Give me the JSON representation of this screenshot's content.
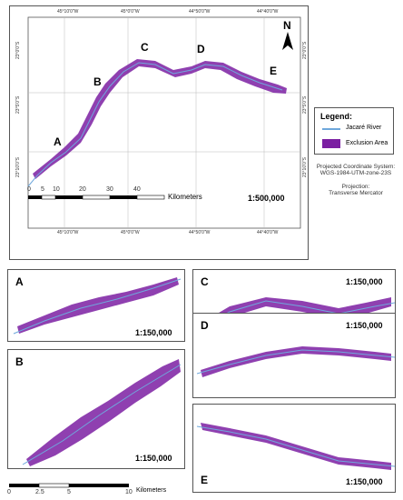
{
  "main_map": {
    "top_ticks": [
      "45°10'0\"W",
      "45°0'0\"W",
      "44°50'0\"W",
      "44°40'0\"W"
    ],
    "bottom_ticks": [
      "45°10'0\"W",
      "45°0'0\"W",
      "44°50'0\"W",
      "44°40'0\"W"
    ],
    "left_ticks": [
      "23°0'0\"S",
      "23°5'0\"S",
      "23°10'0\"S"
    ],
    "right_ticks": [
      "23°0'0\"S",
      "23°5'0\"S",
      "23°10'0\"S"
    ],
    "section_labels": [
      "A",
      "B",
      "C",
      "D",
      "E"
    ],
    "north_label": "N",
    "scale_ticks": [
      "0",
      "5",
      "10",
      "20",
      "30",
      "40"
    ],
    "scale_unit": "Kilometers",
    "scale_ratio": "1:500,000"
  },
  "legend": {
    "title": "Legend:",
    "items": [
      {
        "label": "Jacaré River",
        "color": "#6fa8dc"
      },
      {
        "label": "Exclusion Area",
        "color": "#7b1fa2"
      }
    ]
  },
  "projection": {
    "coord_system": "Projected Coordinate System:",
    "coord_value": "WGS-1984-UTM-zone-23S",
    "proj_label": "Projection:",
    "proj_value": "Transverse Mercator"
  },
  "insets": [
    {
      "label": "A",
      "scale": "1:150,000"
    },
    {
      "label": "B",
      "scale": "1:150,000"
    },
    {
      "label": "C",
      "scale": "1:150,000"
    },
    {
      "label": "D",
      "scale": "1:150,000"
    },
    {
      "label": "E",
      "scale": "1:150,000"
    }
  ],
  "bottom_scale": {
    "ticks": [
      "0",
      "2.5",
      "5",
      "10"
    ],
    "unit": "Kilometers"
  },
  "colors": {
    "exclusion": "#7b1fa2",
    "river": "#6fa8dc"
  }
}
